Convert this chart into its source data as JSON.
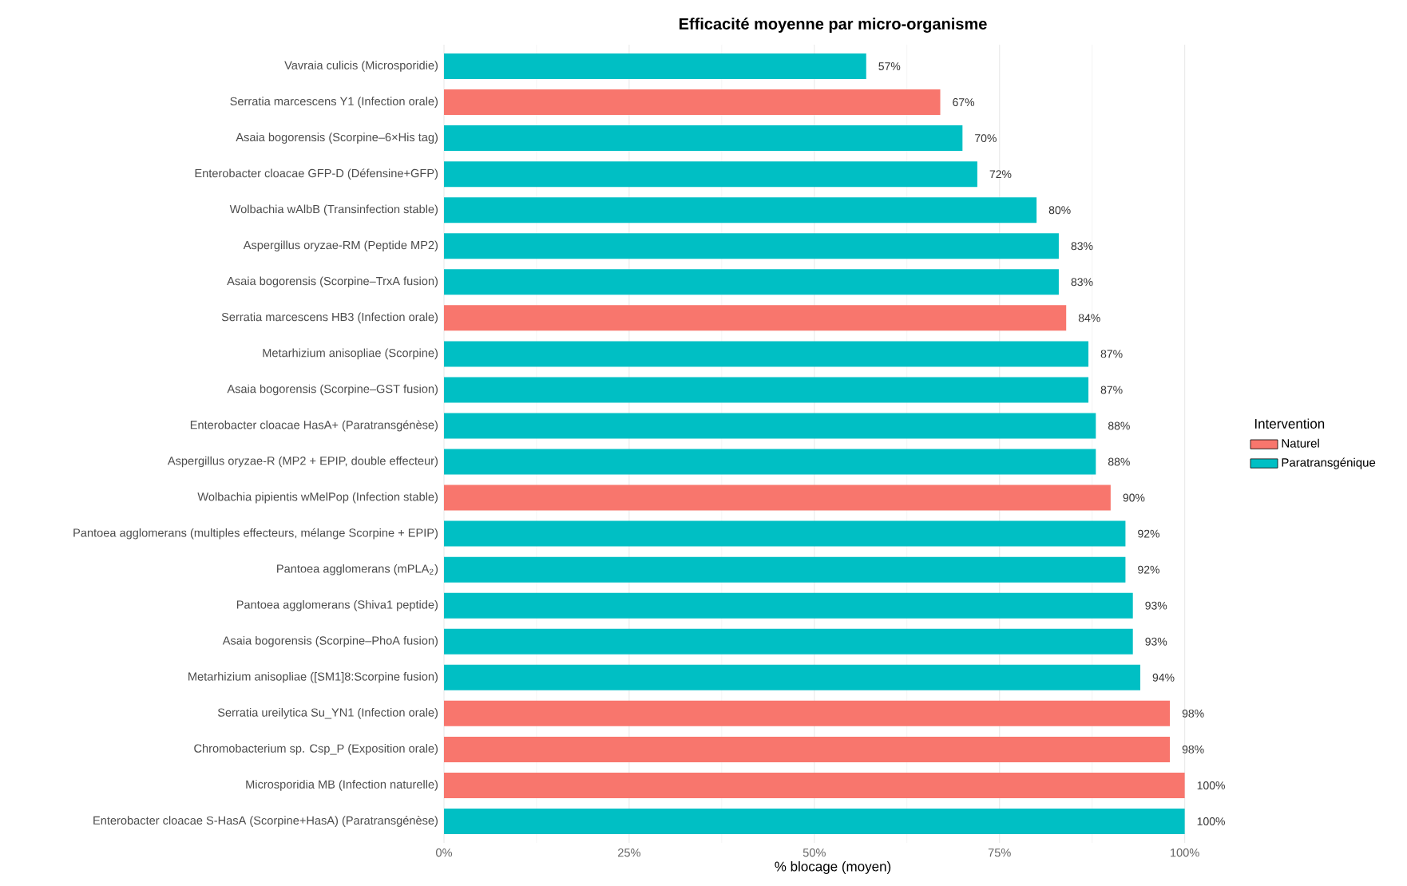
{
  "chart_data": {
    "type": "bar",
    "orientation": "horizontal",
    "title": "Efficacité moyenne par micro-organisme",
    "xlabel": "% blocage (moyen)",
    "legend_title": "Intervention",
    "legend": "right",
    "grid": "x",
    "categories": [
      "Vavraia culicis (Microsporidie)",
      "Serratia marcescens Y1 (Infection orale)",
      "Asaia bogorensis (Scorpine–6×His tag)",
      "Enterobacter cloacae GFP-D (Défensine+GFP)",
      "Wolbachia wAlbB (Transinfection stable)",
      "Aspergillus oryzae-RM (Peptide MP2)",
      "Asaia bogorensis (Scorpine–TrxA fusion)",
      "Serratia marcescens HB3 (Infection orale)",
      "Metarhizium anisopliae (Scorpine)",
      "Asaia bogorensis (Scorpine–GST fusion)",
      "Enterobacter cloacae HasA+ (Paratransgénèse)",
      "Aspergillus oryzae-R (MP2 + EPIP, double effecteur)",
      "Wolbachia pipientis wMelPop (Infection stable)",
      "Pantoea agglomerans (multiples effecteurs, mélange Scorpine + EPIP)",
      "Pantoea agglomerans (mPLA$_{2}$)",
      "Pantoea agglomerans (Shiva1 peptide)",
      "Asaia bogorensis (Scorpine–PhoA fusion)",
      "Metarhizium anisopliae ([SM1]8:Scorpine fusion)",
      "Serratia ureilytica Su_YN1 (Infection orale)",
      "Chromobacterium sp. Csp_P (Exposition orale)",
      "Microsporidia MB (Infection naturelle)",
      "Enterobacter cloacae S-HasA (Scorpine+HasA) (Paratransgénèse)"
    ],
    "series": [
      {
        "name": "Naturel",
        "color": "#f8766d",
        "values": [
          null,
          67,
          null,
          null,
          null,
          null,
          null,
          84,
          null,
          null,
          null,
          null,
          90,
          null,
          null,
          null,
          null,
          null,
          98,
          98,
          100,
          null
        ],
        "value_labels": [
          null,
          "67%",
          null,
          null,
          null,
          null,
          null,
          "84%",
          null,
          null,
          null,
          null,
          "90%",
          null,
          null,
          null,
          null,
          null,
          "98%",
          "98%",
          "100%",
          null
        ]
      },
      {
        "name": "Paratransgénique",
        "color": "#00bfc4",
        "values": [
          57,
          null,
          70,
          72,
          80,
          83,
          83,
          null,
          87,
          87,
          88,
          88,
          null,
          92,
          92,
          93,
          93,
          94,
          null,
          null,
          null,
          100
        ],
        "value_labels": [
          "57%",
          null,
          "70%",
          "72%",
          "80%",
          "83%",
          "83%",
          null,
          "87%",
          "87%",
          "88%",
          "88%",
          null,
          "92%",
          "92%",
          "93%",
          "93%",
          "94%",
          null,
          null,
          null,
          "100%"
        ]
      }
    ],
    "xlim": [
      0,
      100
    ],
    "xticks": [
      {
        "value": 0,
        "label": "0%"
      },
      {
        "value": 25,
        "label": "25%"
      },
      {
        "value": 50,
        "label": "50%"
      },
      {
        "value": 75,
        "label": "75%"
      },
      {
        "value": 100,
        "label": "100%"
      }
    ]
  }
}
